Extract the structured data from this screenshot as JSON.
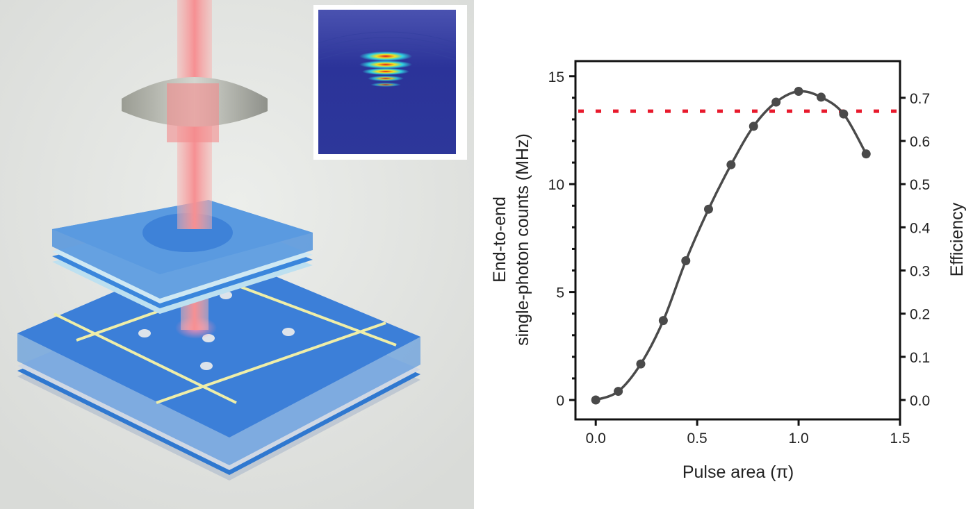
{
  "chart_data": {
    "type": "line",
    "xlabel": "Pulse area (π)",
    "ylabel_lines": [
      "End-to-end",
      "single-photon counts (MHz)"
    ],
    "y2label": "Efficiency",
    "xlim": [
      -0.1,
      1.5
    ],
    "ylim": [
      -0.9,
      15.7
    ],
    "y2lim": [
      -0.045,
      0.785
    ],
    "xticks": [
      "0.0",
      "0.5",
      "1.0",
      "1.5"
    ],
    "xtick_values": [
      0,
      0.5,
      1.0,
      1.5
    ],
    "yticks": [
      "0",
      "5",
      "10",
      "15"
    ],
    "ytick_values": [
      0,
      5,
      10,
      15
    ],
    "y2ticks": [
      "0.0",
      "0.1",
      "0.2",
      "0.3",
      "0.4",
      "0.5",
      "0.6",
      "0.7"
    ],
    "y2tick_values": [
      0,
      0.1,
      0.2,
      0.3,
      0.4,
      0.5,
      0.6,
      0.7
    ],
    "grid": false,
    "series": [
      {
        "x": [
          0,
          0.111,
          0.222,
          0.333,
          0.444,
          0.556,
          0.667,
          0.778,
          0.889,
          1.0,
          1.111,
          1.222,
          1.333
        ],
        "y": [
          0,
          0.4,
          1.67,
          3.68,
          6.45,
          8.84,
          10.9,
          12.68,
          13.8,
          14.3,
          14.03,
          13.25,
          11.4
        ],
        "color": "#4a4a4a",
        "marker": "circle",
        "smooth": true
      }
    ],
    "reference_line": {
      "y": 13.38,
      "color": "#e8192c",
      "style": "dotted"
    }
  },
  "illustration": {
    "background": "#e4e6e3",
    "laser_color": "#f4a0a0",
    "layer_color": "#3b82d6",
    "electrode_color": "#efeea8",
    "inset_colormap": "jet"
  }
}
